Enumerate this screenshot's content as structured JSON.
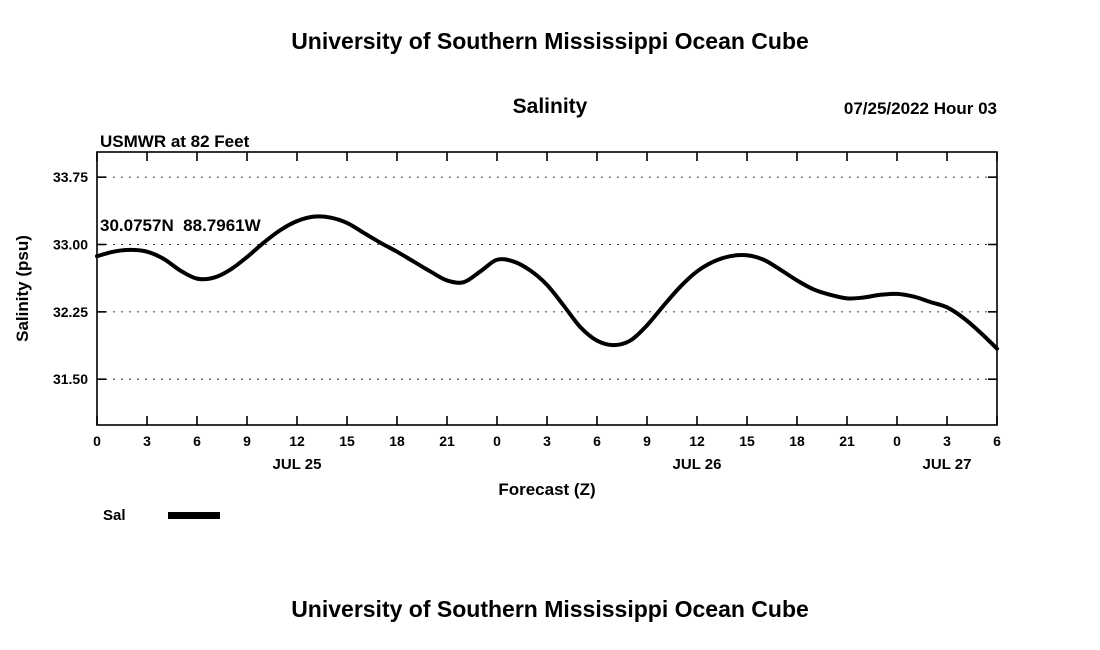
{
  "page": {
    "header_title": "University of Southern Mississippi Ocean Cube",
    "footer_title": "University of Southern Mississippi Ocean Cube"
  },
  "station": {
    "name_line": "USMWR at 82 Feet",
    "coords_line": "30.0757N  88.7961W"
  },
  "datetime_label": "07/25/2022 Hour 03",
  "legend": {
    "label": "Sal",
    "swatch_color": "#000000"
  },
  "chart_data": {
    "type": "line",
    "title": "Salinity",
    "xlabel": "Forecast (Z)",
    "ylabel": "Salinity (psu)",
    "series_name": "Sal",
    "line_color": "#000000",
    "line_width": 4,
    "grid": "horizontal-dashed",
    "legend_position": "bottom-left",
    "xlim": [
      0,
      54
    ],
    "ylim": [
      30.99,
      34.03
    ],
    "x": [
      0,
      1,
      2,
      3,
      4,
      5,
      6,
      7,
      8,
      9,
      10,
      11,
      12,
      13,
      14,
      15,
      16,
      17,
      18,
      19,
      20,
      21,
      22,
      23,
      24,
      25,
      26,
      27,
      28,
      29,
      30,
      31,
      32,
      33,
      34,
      35,
      36,
      37,
      38,
      39,
      40,
      41,
      42,
      43,
      44,
      45,
      46,
      47,
      48,
      49,
      50,
      51,
      52,
      53,
      54
    ],
    "values": [
      32.87,
      32.92,
      32.94,
      32.92,
      32.84,
      32.71,
      32.62,
      32.63,
      32.72,
      32.86,
      33.02,
      33.16,
      33.26,
      33.31,
      33.3,
      33.24,
      33.13,
      33.02,
      32.92,
      32.81,
      32.7,
      32.6,
      32.58,
      32.7,
      32.83,
      32.81,
      32.71,
      32.55,
      32.32,
      32.08,
      31.93,
      31.88,
      31.93,
      32.1,
      32.32,
      32.53,
      32.7,
      32.81,
      32.87,
      32.88,
      32.83,
      32.72,
      32.6,
      32.5,
      32.44,
      32.4,
      32.41,
      32.44,
      32.45,
      32.42,
      32.36,
      32.3,
      32.18,
      32.02,
      31.84
    ],
    "x_ticks": [
      {
        "hour": 0,
        "label": "0"
      },
      {
        "hour": 3,
        "label": "3"
      },
      {
        "hour": 6,
        "label": "6"
      },
      {
        "hour": 9,
        "label": "9"
      },
      {
        "hour": 12,
        "label": "12"
      },
      {
        "hour": 15,
        "label": "15"
      },
      {
        "hour": 18,
        "label": "18"
      },
      {
        "hour": 21,
        "label": "21"
      },
      {
        "hour": 24,
        "label": "0"
      },
      {
        "hour": 27,
        "label": "3"
      },
      {
        "hour": 30,
        "label": "6"
      },
      {
        "hour": 33,
        "label": "9"
      },
      {
        "hour": 36,
        "label": "12"
      },
      {
        "hour": 39,
        "label": "15"
      },
      {
        "hour": 42,
        "label": "18"
      },
      {
        "hour": 45,
        "label": "21"
      },
      {
        "hour": 48,
        "label": "0"
      },
      {
        "hour": 51,
        "label": "3"
      },
      {
        "hour": 54,
        "label": "6"
      }
    ],
    "y_ticks": [
      {
        "value": 33.75,
        "label": "33.75"
      },
      {
        "value": 33.0,
        "label": "33.00"
      },
      {
        "value": 32.25,
        "label": "32.25"
      },
      {
        "value": 31.5,
        "label": "31.50"
      }
    ],
    "date_labels": [
      {
        "hour": 12,
        "label": "JUL 25"
      },
      {
        "hour": 36,
        "label": "JUL 26"
      },
      {
        "hour": 51,
        "label": "JUL 27"
      }
    ]
  }
}
